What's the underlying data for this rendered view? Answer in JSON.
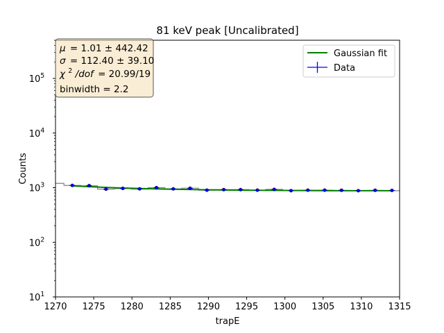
{
  "chart_data": {
    "type": "line",
    "title": "81 keV peak [Uncalibrated]",
    "xlabel": "trapE",
    "ylabel": "Counts",
    "xlim": [
      1270,
      1315
    ],
    "ylim": [
      10,
      500000
    ],
    "yscale": "log",
    "x_ticks": [
      {
        "value": 1270,
        "label": "1270"
      },
      {
        "value": 1275,
        "label": "1275"
      },
      {
        "value": 1280,
        "label": "1280"
      },
      {
        "value": 1285,
        "label": "1285"
      },
      {
        "value": 1290,
        "label": "1290"
      },
      {
        "value": 1295,
        "label": "1295"
      },
      {
        "value": 1300,
        "label": "1300"
      },
      {
        "value": 1305,
        "label": "1305"
      },
      {
        "value": 1310,
        "label": "1310"
      },
      {
        "value": 1315,
        "label": "1315"
      }
    ],
    "y_ticks": [
      {
        "value": 10,
        "base": "10",
        "exp": "1"
      },
      {
        "value": 100,
        "base": "10",
        "exp": "2"
      },
      {
        "value": 1000,
        "base": "10",
        "exp": "3"
      },
      {
        "value": 10000,
        "base": "10",
        "exp": "4"
      },
      {
        "value": 100000,
        "base": "10",
        "exp": "5"
      }
    ],
    "histogram": {
      "name": "histogram",
      "color": "#808080",
      "edges": [
        1270,
        1271.1,
        1273.3,
        1275.5,
        1277.7,
        1279.9,
        1282.1,
        1284.3,
        1286.5,
        1288.7,
        1290.9,
        1293.1,
        1295.3,
        1297.5,
        1299.7,
        1301.9,
        1304.1,
        1306.3,
        1308.5,
        1310.7,
        1312.9,
        1315
      ],
      "counts": [
        1200,
        1100,
        1080,
        940,
        960,
        940,
        1000,
        950,
        980,
        900,
        920,
        920,
        900,
        930,
        880,
        900,
        900,
        890,
        880,
        890,
        880
      ]
    },
    "series": [
      {
        "name": "Data",
        "color": "#0000ff",
        "marker": "circle",
        "x": [
          1272.2,
          1274.4,
          1276.6,
          1278.8,
          1281.0,
          1283.2,
          1285.4,
          1287.6,
          1289.8,
          1292.0,
          1294.2,
          1296.4,
          1298.6,
          1300.8,
          1303.0,
          1305.2,
          1307.4,
          1309.6,
          1311.8,
          1314.0
        ],
        "y": [
          1100,
          1090,
          940,
          970,
          950,
          1000,
          950,
          975,
          900,
          920,
          920,
          900,
          930,
          880,
          900,
          900,
          895,
          880,
          895,
          890
        ],
        "yerr": [
          33,
          33,
          31,
          31,
          31,
          32,
          31,
          31,
          30,
          30,
          30,
          30,
          30,
          30,
          30,
          30,
          30,
          30,
          30,
          30
        ]
      },
      {
        "name": "Gaussian fit",
        "color": "#008000",
        "x": [
          1272,
          1274,
          1276,
          1278,
          1280,
          1282,
          1284,
          1286,
          1288,
          1290,
          1292,
          1294,
          1296,
          1298,
          1300,
          1302,
          1304,
          1306,
          1308,
          1310,
          1312,
          1314
        ],
        "y": [
          1080,
          1050,
          1020,
          995,
          975,
          958,
          944,
          932,
          922,
          914,
          907,
          901,
          896,
          892,
          889,
          886,
          884,
          882,
          881,
          880,
          879,
          879
        ]
      }
    ],
    "legend": {
      "position": "top-right",
      "entries": [
        {
          "label": "Gaussian fit",
          "series": "Gaussian fit",
          "style": "line"
        },
        {
          "label": "Data",
          "series": "Data",
          "style": "errorbar"
        }
      ]
    },
    "annotation": {
      "mu_value": "= 1.01 ± 442.42",
      "sigma_value": "= 112.40 ± 39.10",
      "chi_value": "= 20.99/19",
      "chi_symbol": "χ",
      "mu_symbol": "μ",
      "sigma_symbol": "σ",
      "dof_text": "/dof",
      "binwidth": "binwidth = 2.2",
      "background": "#f5deb3"
    }
  }
}
